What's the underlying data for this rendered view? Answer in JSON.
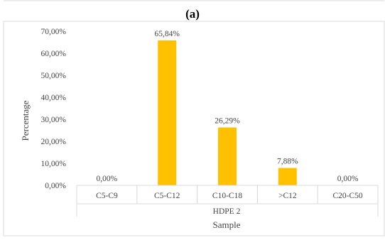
{
  "panel_label": "(a)",
  "chart_data": {
    "type": "bar",
    "title": "",
    "xlabel": "Sample",
    "ylabel": "Percentage",
    "group_label": "HDPE 2",
    "categories": [
      "C5-C9",
      "C5-C12",
      "C10-C18",
      ">C12",
      "C20-C50"
    ],
    "values": [
      0.0,
      65.84,
      26.29,
      7.88,
      0.0
    ],
    "data_labels": [
      "0,00%",
      "65,84%",
      "26,29%",
      "7,88%",
      "0,00%"
    ],
    "ylim": [
      0,
      70
    ],
    "yticks": [
      0,
      10,
      20,
      30,
      40,
      50,
      60,
      70
    ],
    "ytick_labels": [
      "0,00%",
      "10,00%",
      "20,00%",
      "30,00%",
      "40,00%",
      "50,00%",
      "60,00%",
      "70,00%"
    ],
    "grid": false,
    "legend": "none",
    "colors": {
      "bar": "#FFC000",
      "axis": "#d9d9d9",
      "text": "#444444",
      "frame": "#d9d9d9"
    }
  }
}
